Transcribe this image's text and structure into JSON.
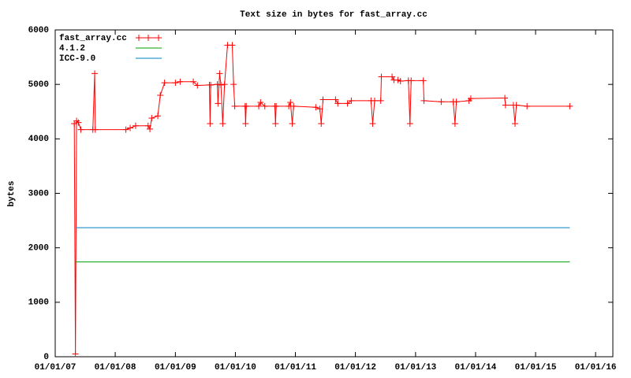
{
  "chart_data": {
    "type": "line",
    "title": "Text size in bytes for fast_array.cc",
    "y_label": "bytes",
    "xlim": [
      "2007-01-01",
      "2016-04-15"
    ],
    "xticks": [
      {
        "value": "2007-01-01",
        "label": "01/01/07"
      },
      {
        "value": "2008-01-01",
        "label": "01/01/08"
      },
      {
        "value": "2009-01-01",
        "label": "01/01/09"
      },
      {
        "value": "2010-01-01",
        "label": "01/01/10"
      },
      {
        "value": "2011-01-01",
        "label": "01/01/11"
      },
      {
        "value": "2012-01-01",
        "label": "01/01/12"
      },
      {
        "value": "2013-01-01",
        "label": "01/01/13"
      },
      {
        "value": "2014-01-01",
        "label": "01/01/14"
      },
      {
        "value": "2015-01-01",
        "label": "01/01/15"
      },
      {
        "value": "2016-01-01",
        "label": "01/01/16"
      }
    ],
    "ylim": [
      0,
      6000
    ],
    "yticks": [
      0,
      1000,
      2000,
      3000,
      4000,
      5000,
      6000
    ],
    "legend": "top-left",
    "series": [
      {
        "name": "fast_array.cc",
        "color": "#ff0000",
        "markers": true,
        "x": [
          "2007-04-27",
          "2007-05-04",
          "2007-05-11",
          "2007-05-22",
          "2007-06-06",
          "2007-08-18",
          "2007-08-29",
          "2007-09-02",
          "2008-03-06",
          "2008-04-01",
          "2008-05-04",
          "2008-07-19",
          "2008-07-30",
          "2008-08-10",
          "2008-09-16",
          "2008-10-01",
          "2008-10-27",
          "2009-01-01",
          "2009-01-30",
          "2009-04-20",
          "2009-05-15",
          "2009-07-27",
          "2009-07-31",
          "2009-08-04",
          "2009-09-13",
          "2009-09-17",
          "2009-09-27",
          "2009-10-05",
          "2009-10-16",
          "2009-10-27",
          "2009-11-14",
          "2009-12-13",
          "2009-12-21",
          "2009-12-28",
          "2010-03-01",
          "2010-03-04",
          "2010-03-08",
          "2010-05-23",
          "2010-06-03",
          "2010-06-29",
          "2010-08-29",
          "2010-09-02",
          "2010-09-06",
          "2010-11-22",
          "2010-12-02",
          "2010-12-13",
          "2010-12-21",
          "2011-05-05",
          "2011-05-30",
          "2011-06-07",
          "2011-06-18",
          "2011-09-02",
          "2011-09-16",
          "2011-11-14",
          "2011-12-07",
          "2012-04-05",
          "2012-04-15",
          "2012-04-27",
          "2012-06-03",
          "2012-06-07",
          "2012-08-11",
          "2012-08-22",
          "2012-09-16",
          "2012-10-01",
          "2012-11-18",
          "2012-11-28",
          "2012-12-05",
          "2013-02-17",
          "2013-02-21",
          "2013-06-06",
          "2013-08-18",
          "2013-08-29",
          "2013-09-06",
          "2013-11-22",
          "2013-12-03",
          "2014-06-28",
          "2014-07-02",
          "2014-08-19",
          "2014-08-29",
          "2014-09-06",
          "2014-11-10",
          "2015-07-28"
        ],
        "values": [
          4280,
          50,
          4330,
          4300,
          4170,
          4170,
          5200,
          4170,
          4170,
          4200,
          4240,
          4240,
          4180,
          4380,
          4420,
          4800,
          5030,
          5030,
          5050,
          5050,
          4980,
          4990,
          4280,
          4990,
          5000,
          4650,
          5200,
          4990,
          4280,
          5000,
          5720,
          5720,
          5000,
          4600,
          4600,
          4280,
          4600,
          4600,
          4670,
          4600,
          4600,
          4280,
          4600,
          4600,
          4670,
          4280,
          4600,
          4580,
          4550,
          4280,
          4720,
          4720,
          4650,
          4650,
          4700,
          4700,
          4280,
          4700,
          4700,
          5140,
          5140,
          5080,
          5080,
          5060,
          5070,
          4280,
          5070,
          5070,
          4700,
          4680,
          4680,
          4280,
          4680,
          4700,
          4740,
          4750,
          4620,
          4620,
          4280,
          4620,
          4600,
          4600
        ]
      },
      {
        "name": "4.1.2",
        "color": "#00a000",
        "markers": false,
        "x": [
          "2007-05-04",
          "2015-07-28"
        ],
        "values": [
          1740,
          1740
        ]
      },
      {
        "name": "ICC-9.0",
        "color": "#0080c0",
        "markers": false,
        "x": [
          "2007-05-04",
          "2015-07-28"
        ],
        "values": [
          2370,
          2370
        ]
      }
    ]
  }
}
